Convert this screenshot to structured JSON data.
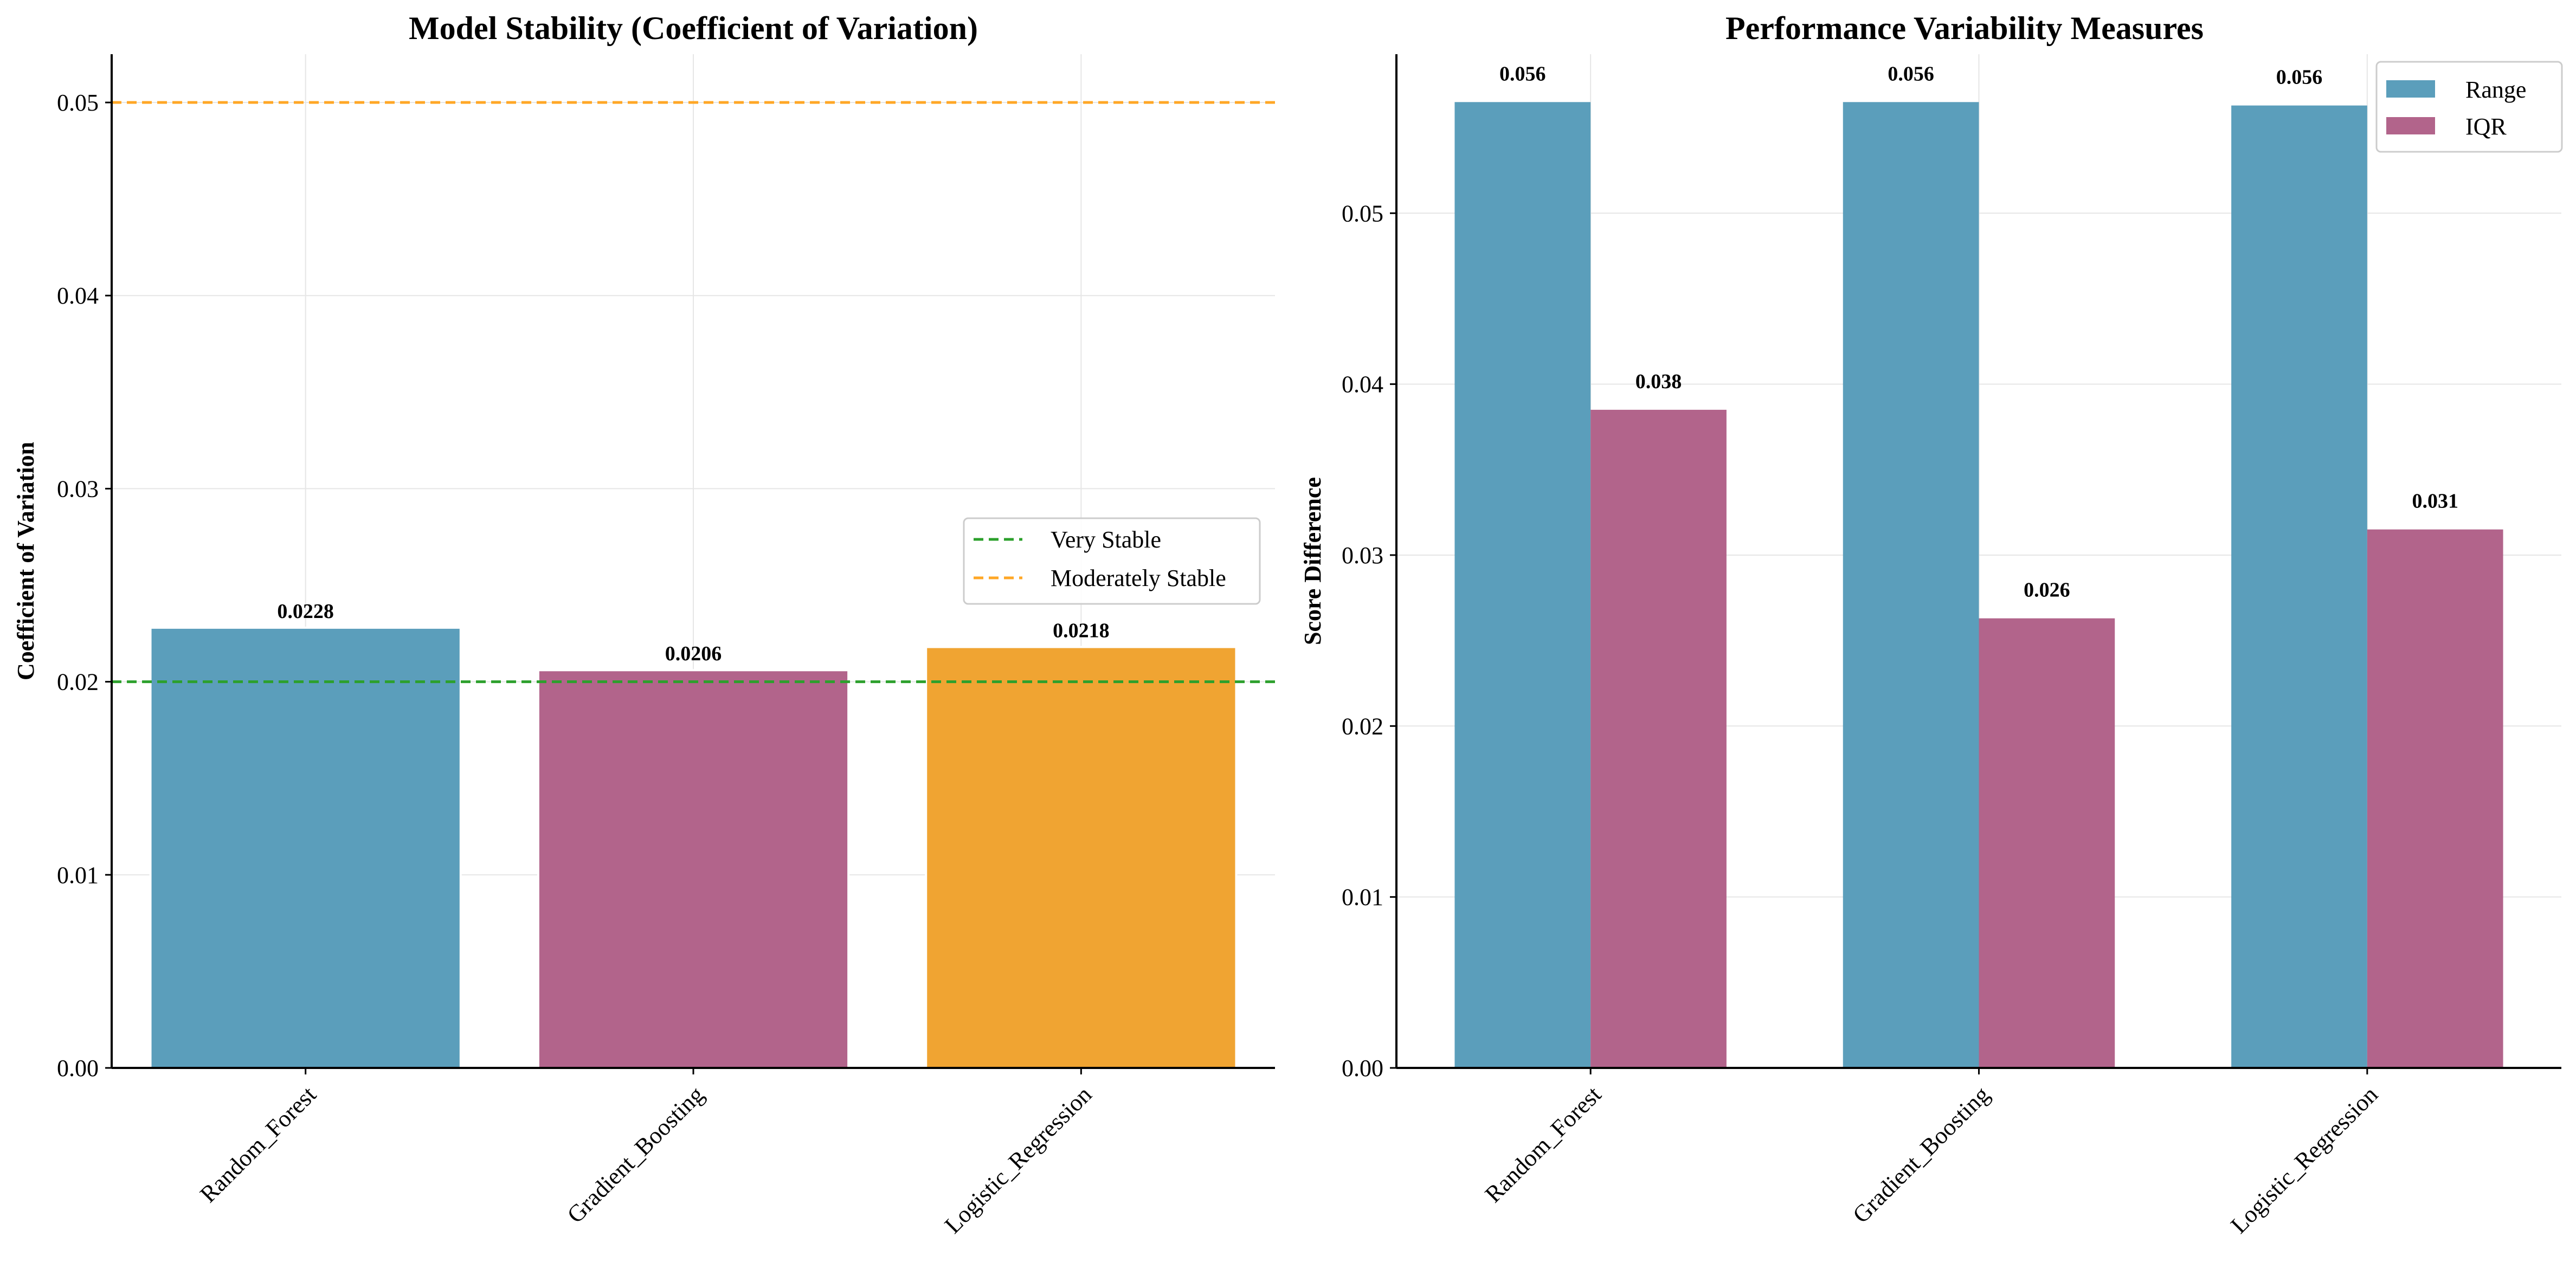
{
  "chart_data": [
    {
      "type": "bar",
      "title": "Model Stability (Coefficient of Variation)",
      "xlabel": "",
      "ylabel": "Coefficient of Variation",
      "categories": [
        "Random_Forest",
        "Gradient_Boosting",
        "Logistic_Regression"
      ],
      "values": [
        0.0228,
        0.0206,
        0.0218
      ],
      "value_labels": [
        "0.0228",
        "0.0206",
        "0.0218"
      ],
      "bar_colors": [
        "#5b9ebb",
        "#b2648b",
        "#f0a432"
      ],
      "ylim": [
        0,
        0.0525
      ],
      "yticks": [
        0.0,
        0.01,
        0.02,
        0.03,
        0.04,
        0.05
      ],
      "ytick_labels": [
        "0.00",
        "0.01",
        "0.02",
        "0.03",
        "0.04",
        "0.05"
      ],
      "grid": true,
      "reference_lines": [
        {
          "name": "Very Stable",
          "value": 0.02,
          "color": "#2ca02c",
          "style": "dashed"
        },
        {
          "name": "Moderately Stable",
          "value": 0.05,
          "color": "#ffa726",
          "style": "dashed"
        }
      ],
      "legend": {
        "placement": "center-right",
        "entries": [
          "Very Stable",
          "Moderately Stable"
        ]
      }
    },
    {
      "type": "bar",
      "title": "Performance Variability Measures",
      "xlabel": "",
      "ylabel": "Score Difference",
      "categories": [
        "Random_Forest",
        "Gradient_Boosting",
        "Logistic_Regression"
      ],
      "series": [
        {
          "name": "Range",
          "values": [
            0.0565,
            0.0565,
            0.0563
          ],
          "value_labels": [
            "0.056",
            "0.056",
            "0.056"
          ],
          "color": "#5b9ebb"
        },
        {
          "name": "IQR",
          "values": [
            0.0385,
            0.0263,
            0.0315
          ],
          "value_labels": [
            "0.038",
            "0.026",
            "0.031"
          ],
          "color": "#b2648b"
        }
      ],
      "ylim": [
        0,
        0.0593
      ],
      "yticks": [
        0.0,
        0.01,
        0.02,
        0.03,
        0.04,
        0.05
      ],
      "ytick_labels": [
        "0.00",
        "0.01",
        "0.02",
        "0.03",
        "0.04",
        "0.05"
      ],
      "grid": true,
      "legend": {
        "placement": "top-right",
        "entries": [
          "Range",
          "IQR"
        ]
      }
    }
  ]
}
